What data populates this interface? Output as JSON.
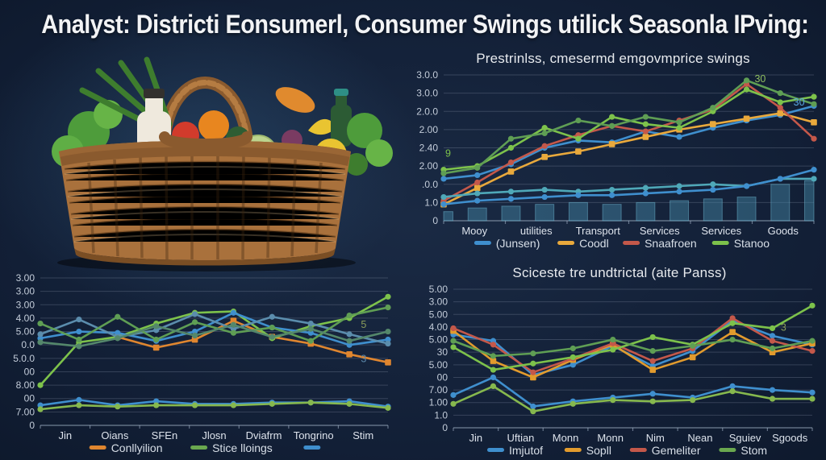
{
  "page": {
    "title": "Analyst: Districti Eonsumerl, Consumer Swings utilick Seasonla IPving:"
  },
  "hero_image": {
    "name": "grocery-basket-photo",
    "alt": "Wicker basket filled with fresh vegetables, fruit and bottles"
  },
  "colors": {
    "background": "#121f36",
    "grid": "rgba(158,173,193,0.25)",
    "axis": "rgba(172,188,208,0.55)",
    "blue": "#3f8fce",
    "yellow": "#e9a93c",
    "orange": "#e0862f",
    "red": "#c4584a",
    "green": "#7dc24b",
    "olive": "#5f9e54",
    "teal": "#4fa8b8",
    "bars": "rgba(70,140,170,0.45)"
  },
  "chart_data": [
    {
      "id": "price-swings",
      "type": "line",
      "title": "Prestrinlss, cmesermd emgovmprice swings",
      "ylabels": [
        "3.0.0",
        "3.0.0",
        "2.0.0",
        "2.00",
        "2.40",
        "2.00",
        ".0.0",
        "1.0",
        "0"
      ],
      "ymax": 8,
      "xlabels": [
        "Mooy",
        "utilities",
        "Transport",
        "Services",
        "Services",
        "Goods"
      ],
      "bars": {
        "color": "rgba(70,140,170,0.45)",
        "stroke": "rgba(110,180,205,0.5)",
        "values": [
          0.5,
          0.7,
          0.8,
          0.9,
          1.0,
          0.9,
          1.0,
          1.1,
          1.2,
          1.3,
          2.0,
          2.2
        ]
      },
      "series": [
        {
          "name": "(Junsen)",
          "color": "#3f8fce",
          "marker": "circle",
          "values": [
            2.3,
            2.5,
            3.1,
            4.0,
            4.4,
            4.3,
            4.9,
            4.6,
            5.1,
            5.5,
            5.8,
            6.3
          ]
        },
        {
          "name": "Coodl",
          "color": "#e9a93c",
          "marker": "square",
          "values": [
            0.9,
            1.8,
            2.7,
            3.5,
            3.8,
            4.2,
            4.6,
            5.0,
            5.3,
            5.6,
            5.9,
            5.4
          ]
        },
        {
          "name": "Snaafroen",
          "color": "#c4584a",
          "marker": "circle",
          "values": [
            1.1,
            2.1,
            3.2,
            4.1,
            4.7,
            5.2,
            4.9,
            5.5,
            6.1,
            7.5,
            6.2,
            4.5
          ]
        },
        {
          "name": "Stanoo",
          "color": "#7dc24b",
          "marker": "circle",
          "values": [
            2.8,
            3.0,
            4.0,
            5.1,
            4.5,
            5.7,
            5.3,
            5.1,
            6.0,
            7.2,
            6.5,
            6.8
          ]
        },
        {
          "name": "olive-line",
          "color": "#5f9e54",
          "marker": "circle",
          "values": [
            2.6,
            2.9,
            4.5,
            4.8,
            5.5,
            5.2,
            5.7,
            5.4,
            6.2,
            7.7,
            7.0,
            6.4
          ]
        },
        {
          "name": "teal-line",
          "color": "#4fa8b8",
          "marker": "circle",
          "values": [
            1.3,
            1.5,
            1.6,
            1.7,
            1.6,
            1.7,
            1.8,
            1.9,
            2.0,
            1.9,
            2.3,
            2.3
          ]
        },
        {
          "name": "bottom-blue",
          "color": "#3f8fce",
          "marker": "circle",
          "values": [
            0.9,
            1.1,
            1.2,
            1.3,
            1.4,
            1.4,
            1.5,
            1.6,
            1.7,
            1.9,
            2.3,
            2.8
          ]
        }
      ],
      "legend": [
        {
          "label": "(Junsen)",
          "color": "#3f8fce"
        },
        {
          "label": "Coodl",
          "color": "#e9a93c"
        },
        {
          "label": "Snaafroen",
          "color": "#c4584a"
        },
        {
          "label": "Stanoo",
          "color": "#7dc24b"
        }
      ],
      "annotations": [
        {
          "text": "30",
          "fx": 0.855,
          "fy": 0.05,
          "color": "#8fbf5f"
        },
        {
          "text": "30",
          "fx": 0.96,
          "fy": 0.21,
          "color": "#5aa7e0"
        },
        {
          "text": "9",
          "fx": 0.012,
          "fy": 0.56,
          "color": "#7dc24b"
        }
      ]
    },
    {
      "id": "monthly-mix",
      "type": "line",
      "title": "",
      "ylabels": [
        "3.00",
        "3.00",
        "3.00",
        "4.00",
        "5.00",
        "0.0",
        "5.0.0",
        "00",
        "8.00",
        "00",
        "7.00",
        "0"
      ],
      "ymax": 11,
      "xlabels": [
        "Jin",
        "Oians",
        "SFEn",
        "Jlosn",
        "Dviafrm",
        "Tongrino",
        "Stim"
      ],
      "series": [
        {
          "name": "Conllyilion",
          "color": "#e0862f",
          "marker": "square",
          "values": [
            null,
            null,
            6.6,
            5.8,
            6.4,
            7.8,
            6.6,
            6.1,
            5.3,
            4.7
          ]
        },
        {
          "name": "Stice lloings",
          "color": "#7dc24b",
          "marker": "circle",
          "values": [
            3.0,
            6.2,
            6.6,
            7.6,
            8.4,
            8.5,
            6.5,
            7.4,
            8.0,
            9.6
          ]
        },
        {
          "name": "blue-line",
          "color": "#3f8fce",
          "marker": "circle",
          "values": [
            6.5,
            7.0,
            6.9,
            6.3,
            7.0,
            8.4,
            7.3,
            6.9,
            6.0,
            6.4
          ]
        },
        {
          "name": "steel-line",
          "color": "#5b8dad",
          "marker": "circle",
          "values": [
            6.8,
            7.9,
            6.6,
            7.1,
            8.3,
            7.2,
            8.1,
            7.6,
            6.8,
            6.1
          ]
        },
        {
          "name": "olive-a",
          "color": "#5f9e54",
          "marker": "circle",
          "values": [
            7.6,
            6.4,
            8.1,
            6.4,
            7.7,
            6.9,
            7.3,
            6.3,
            8.2,
            8.8
          ]
        },
        {
          "name": "olive-b",
          "color": "#54876b",
          "marker": "circle",
          "values": [
            6.2,
            5.9,
            6.5,
            7.4,
            6.7,
            7.5,
            6.6,
            7.2,
            6.3,
            7.0
          ]
        },
        {
          "name": "flat-blue",
          "color": "#3f8fce",
          "marker": "circle",
          "values": [
            1.5,
            1.9,
            1.5,
            1.8,
            1.6,
            1.6,
            1.7,
            1.7,
            1.8,
            1.4
          ]
        },
        {
          "name": "flat-green",
          "color": "#86b84e",
          "marker": "circle",
          "values": [
            1.2,
            1.5,
            1.4,
            1.5,
            1.5,
            1.5,
            1.6,
            1.7,
            1.6,
            1.3
          ]
        }
      ],
      "legend": [
        {
          "label": "Conllyilion",
          "color": "#e0862f"
        },
        {
          "label": "Stice lloings",
          "color": "#6aa84f"
        },
        {
          "label": "",
          "color": "#3f8fce"
        }
      ],
      "annotations": [
        {
          "text": "5",
          "fx": 0.93,
          "fy": 0.34,
          "color": "#8a9c5a"
        },
        {
          "text": "3",
          "fx": 0.93,
          "fy": 0.57,
          "color": "#5a87a8"
        }
      ]
    },
    {
      "id": "seasonal-panss",
      "type": "line",
      "title": "Sciceste tre undtrictal (aite Panss)",
      "ylabels": [
        "5.00",
        "3.00",
        "5.00",
        "4.00",
        "5.00",
        "30",
        "5.00",
        "00",
        "7.00",
        "1.00",
        "1.0",
        "0"
      ],
      "ymax": 11,
      "xlabels": [
        "Jin",
        "Uftian",
        "Monn",
        "Monn",
        "Nim",
        "Nean",
        "Sguiev",
        "Sgoods"
      ],
      "series": [
        {
          "name": "Imjutof",
          "color": "#3f8fce",
          "marker": "circle",
          "values": [
            7.4,
            6.9,
            4.2,
            5.0,
            6.5,
            4.9,
            6.1,
            8.5,
            7.3,
            6.6
          ]
        },
        {
          "name": "Sopll",
          "color": "#e29b2d",
          "marker": "square",
          "values": [
            7.7,
            5.3,
            4.0,
            5.4,
            6.6,
            4.6,
            5.6,
            7.6,
            6.0,
            6.7
          ]
        },
        {
          "name": "Gemeliter",
          "color": "#c4584a",
          "marker": "circle",
          "values": [
            7.9,
            6.6,
            4.4,
            5.5,
            6.7,
            5.3,
            6.3,
            8.7,
            6.9,
            6.1
          ]
        },
        {
          "name": "Stom",
          "color": "#7dc24b",
          "marker": "circle",
          "values": [
            6.4,
            4.6,
            5.1,
            5.6,
            6.2,
            7.2,
            6.6,
            8.3,
            7.9,
            9.7
          ]
        },
        {
          "name": "olive-line",
          "color": "#5f9e54",
          "marker": "circle",
          "values": [
            6.9,
            5.7,
            5.9,
            6.3,
            7.0,
            6.1,
            6.5,
            7.0,
            6.3,
            6.9
          ]
        },
        {
          "name": "bottom-blue",
          "color": "#3f8fce",
          "marker": "circle",
          "values": [
            2.6,
            4.0,
            1.7,
            2.1,
            2.4,
            2.7,
            2.4,
            3.3,
            3.0,
            2.8
          ]
        },
        {
          "name": "bottom-green",
          "color": "#86b84e",
          "marker": "circle",
          "values": [
            1.9,
            3.3,
            1.3,
            1.9,
            2.2,
            2.1,
            2.2,
            2.9,
            2.3,
            2.3
          ]
        }
      ],
      "legend": [
        {
          "label": "Imjutof",
          "color": "#3f8fce"
        },
        {
          "label": "Sopll",
          "color": "#e29b2d"
        },
        {
          "label": "Gemeliter",
          "color": "#c4584a"
        },
        {
          "label": "Stom",
          "color": "#6aa84f"
        }
      ],
      "annotations": [
        {
          "text": "3",
          "fx": 0.92,
          "fy": 0.3,
          "color": "#8a9c5a"
        }
      ]
    }
  ]
}
